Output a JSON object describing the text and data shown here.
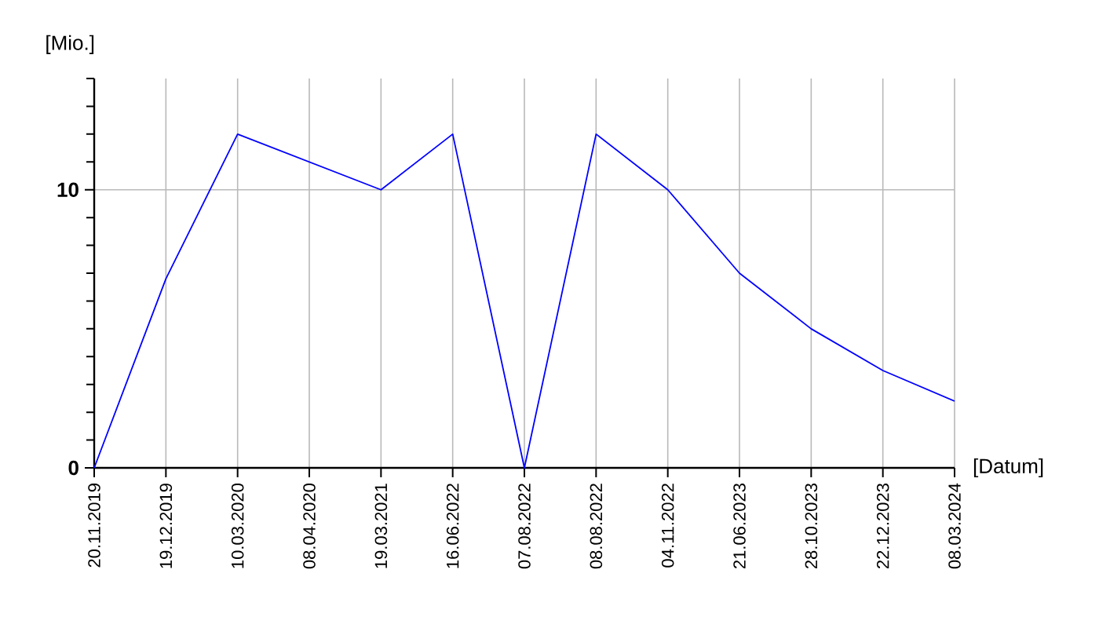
{
  "chart_data": {
    "type": "line",
    "xlabel": "[Datum]",
    "ylabel": "[Mio.]",
    "categories": [
      "20.11.2019",
      "19.12.2019",
      "10.03.2020",
      "08.04.2020",
      "19.03.2021",
      "16.06.2022",
      "07.08.2022",
      "08.08.2022",
      "04.11.2022",
      "21.06.2023",
      "28.10.2023",
      "22.12.2023",
      "08.03.2024"
    ],
    "series": [
      {
        "color": "#0000ff",
        "values": [
          0,
          6.8,
          12,
          11,
          10,
          12,
          0,
          12,
          10,
          7,
          5,
          3.5,
          2.4
        ]
      }
    ],
    "ylim": [
      0,
      14
    ],
    "yticks": [
      0,
      {
        "value": 1,
        "label": null
      },
      {
        "value": 2,
        "label": null
      },
      {
        "value": 3,
        "label": null
      },
      {
        "value": 4,
        "label": null
      },
      {
        "value": 5,
        "label": null
      },
      {
        "value": 6,
        "label": null
      },
      {
        "value": 7,
        "label": null
      },
      {
        "value": 8,
        "label": null
      },
      {
        "value": 9,
        "label": null
      },
      10,
      {
        "value": 11,
        "label": null
      },
      {
        "value": 12,
        "label": null
      },
      {
        "value": 13,
        "label": null
      },
      {
        "value": 14,
        "label": null
      }
    ],
    "grid": true,
    "marker": "none",
    "line_style": "solid"
  }
}
